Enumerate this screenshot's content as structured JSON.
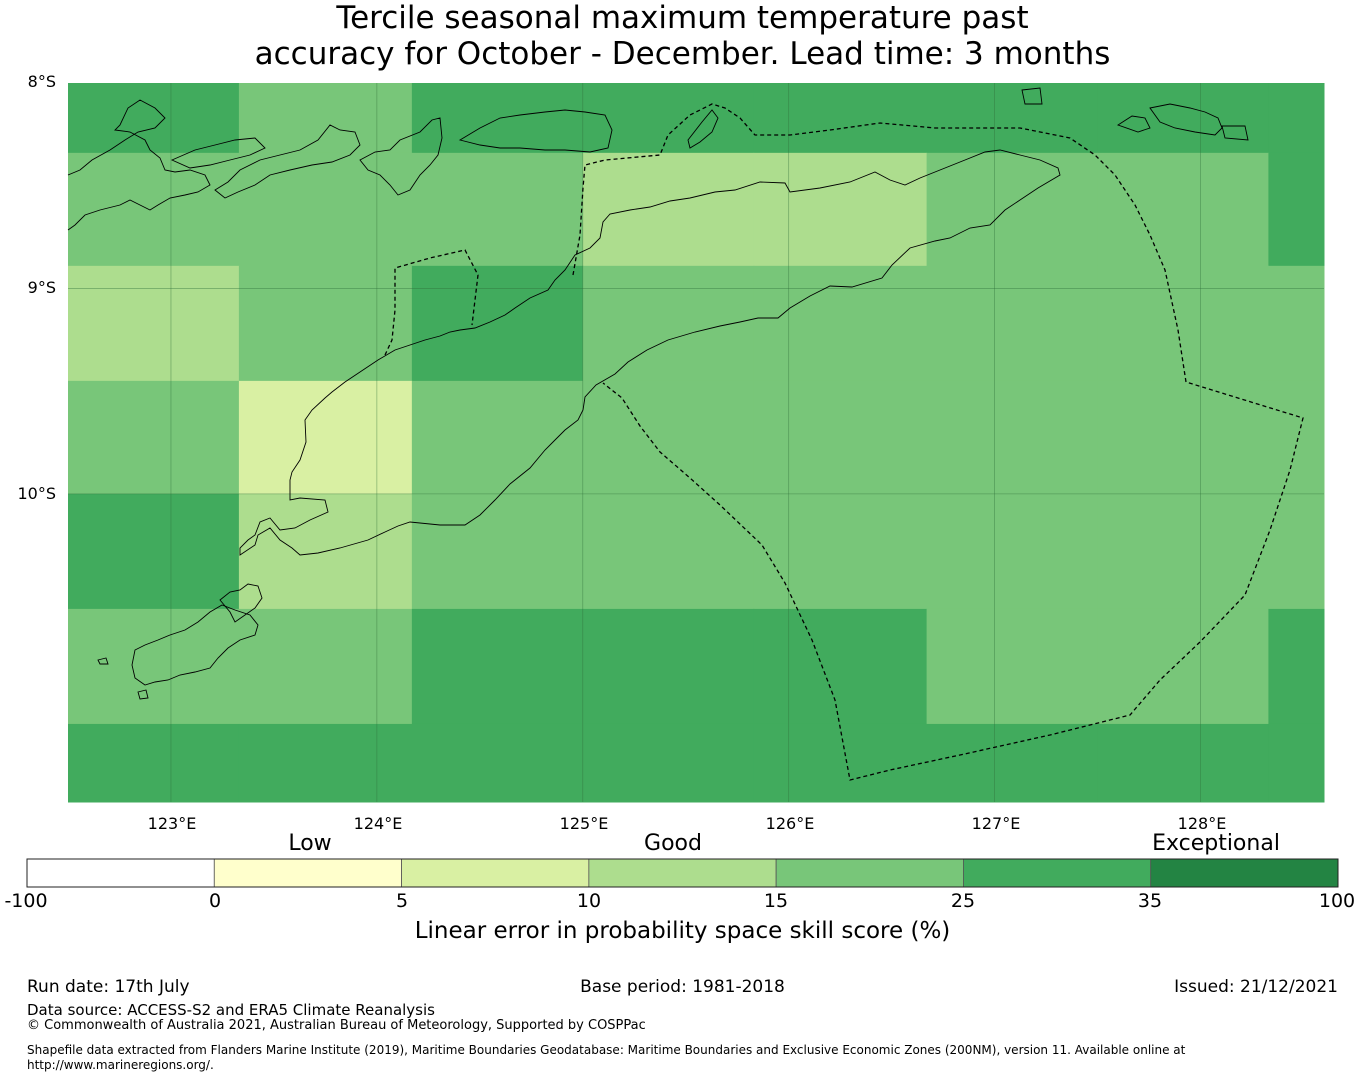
{
  "title": {
    "line1": "Tercile seasonal maximum temperature past",
    "line2": "accuracy for October - December. Lead time: 3 months"
  },
  "map": {
    "lat_labels": [
      "8°S",
      "9°S",
      "10°S"
    ],
    "lon_labels": [
      "123°E",
      "124°E",
      "125°E",
      "126°E",
      "127°E",
      "128°E"
    ],
    "lon_range": [
      122.5,
      128.6
    ],
    "lat_range": [
      -8.0,
      -11.5
    ]
  },
  "skill_grid": {
    "row_lat_edges": [
      -8.0,
      -8.34,
      -8.89,
      -9.45,
      -10.0,
      -10.56,
      -11.12,
      -11.5
    ],
    "col_lon_edges": [
      122.5,
      123.33,
      124.17,
      125.0,
      125.83,
      126.67,
      127.5,
      128.33,
      128.6
    ],
    "values": [
      [
        27,
        17,
        27,
        27,
        27,
        27,
        27,
        27
      ],
      [
        20,
        20,
        20,
        12,
        12,
        20,
        20,
        27
      ],
      [
        12,
        20,
        27,
        20,
        20,
        20,
        20,
        20
      ],
      [
        20,
        7,
        20,
        20,
        20,
        20,
        20,
        20
      ],
      [
        27,
        12,
        20,
        20,
        20,
        20,
        20,
        20
      ],
      [
        20,
        20,
        27,
        27,
        27,
        20,
        20,
        27
      ],
      [
        27,
        27,
        27,
        27,
        27,
        27,
        27,
        27
      ]
    ]
  },
  "colorbar": {
    "boundaries": [
      -100,
      0,
      5,
      10,
      15,
      25,
      35,
      100
    ],
    "tick_labels": [
      "-100",
      "0",
      "5",
      "10",
      "15",
      "25",
      "35",
      "100"
    ],
    "colors": [
      "#ffffff",
      "#ffffcc",
      "#d9f0a3",
      "#addd8e",
      "#78c679",
      "#41ab5d",
      "#238443"
    ],
    "categories": [
      "Low",
      "Good",
      "Exceptional"
    ],
    "title": "Linear error in probability space skill score (%)"
  },
  "footer": {
    "run_date": "Run date: 17th July",
    "base_period": "Base period: 1981-2018",
    "issued": "Issued: 21/12/2021",
    "data_source": "Data source: ACCESS-S2 and ERA5 Climate Reanalysis",
    "copyright": "© Commonwealth of Australia 2021, Australian Bureau of Meteorology, Supported by COSPPac",
    "shapefile_line1": "Shapefile data extracted from Flanders Marine Institute (2019), Maritime Boundaries Geodatabase: Maritime Boundaries and Exclusive Economic Zones (200NM), version 11. Available online at",
    "shapefile_line2": "http://www.marineregions.org/."
  }
}
